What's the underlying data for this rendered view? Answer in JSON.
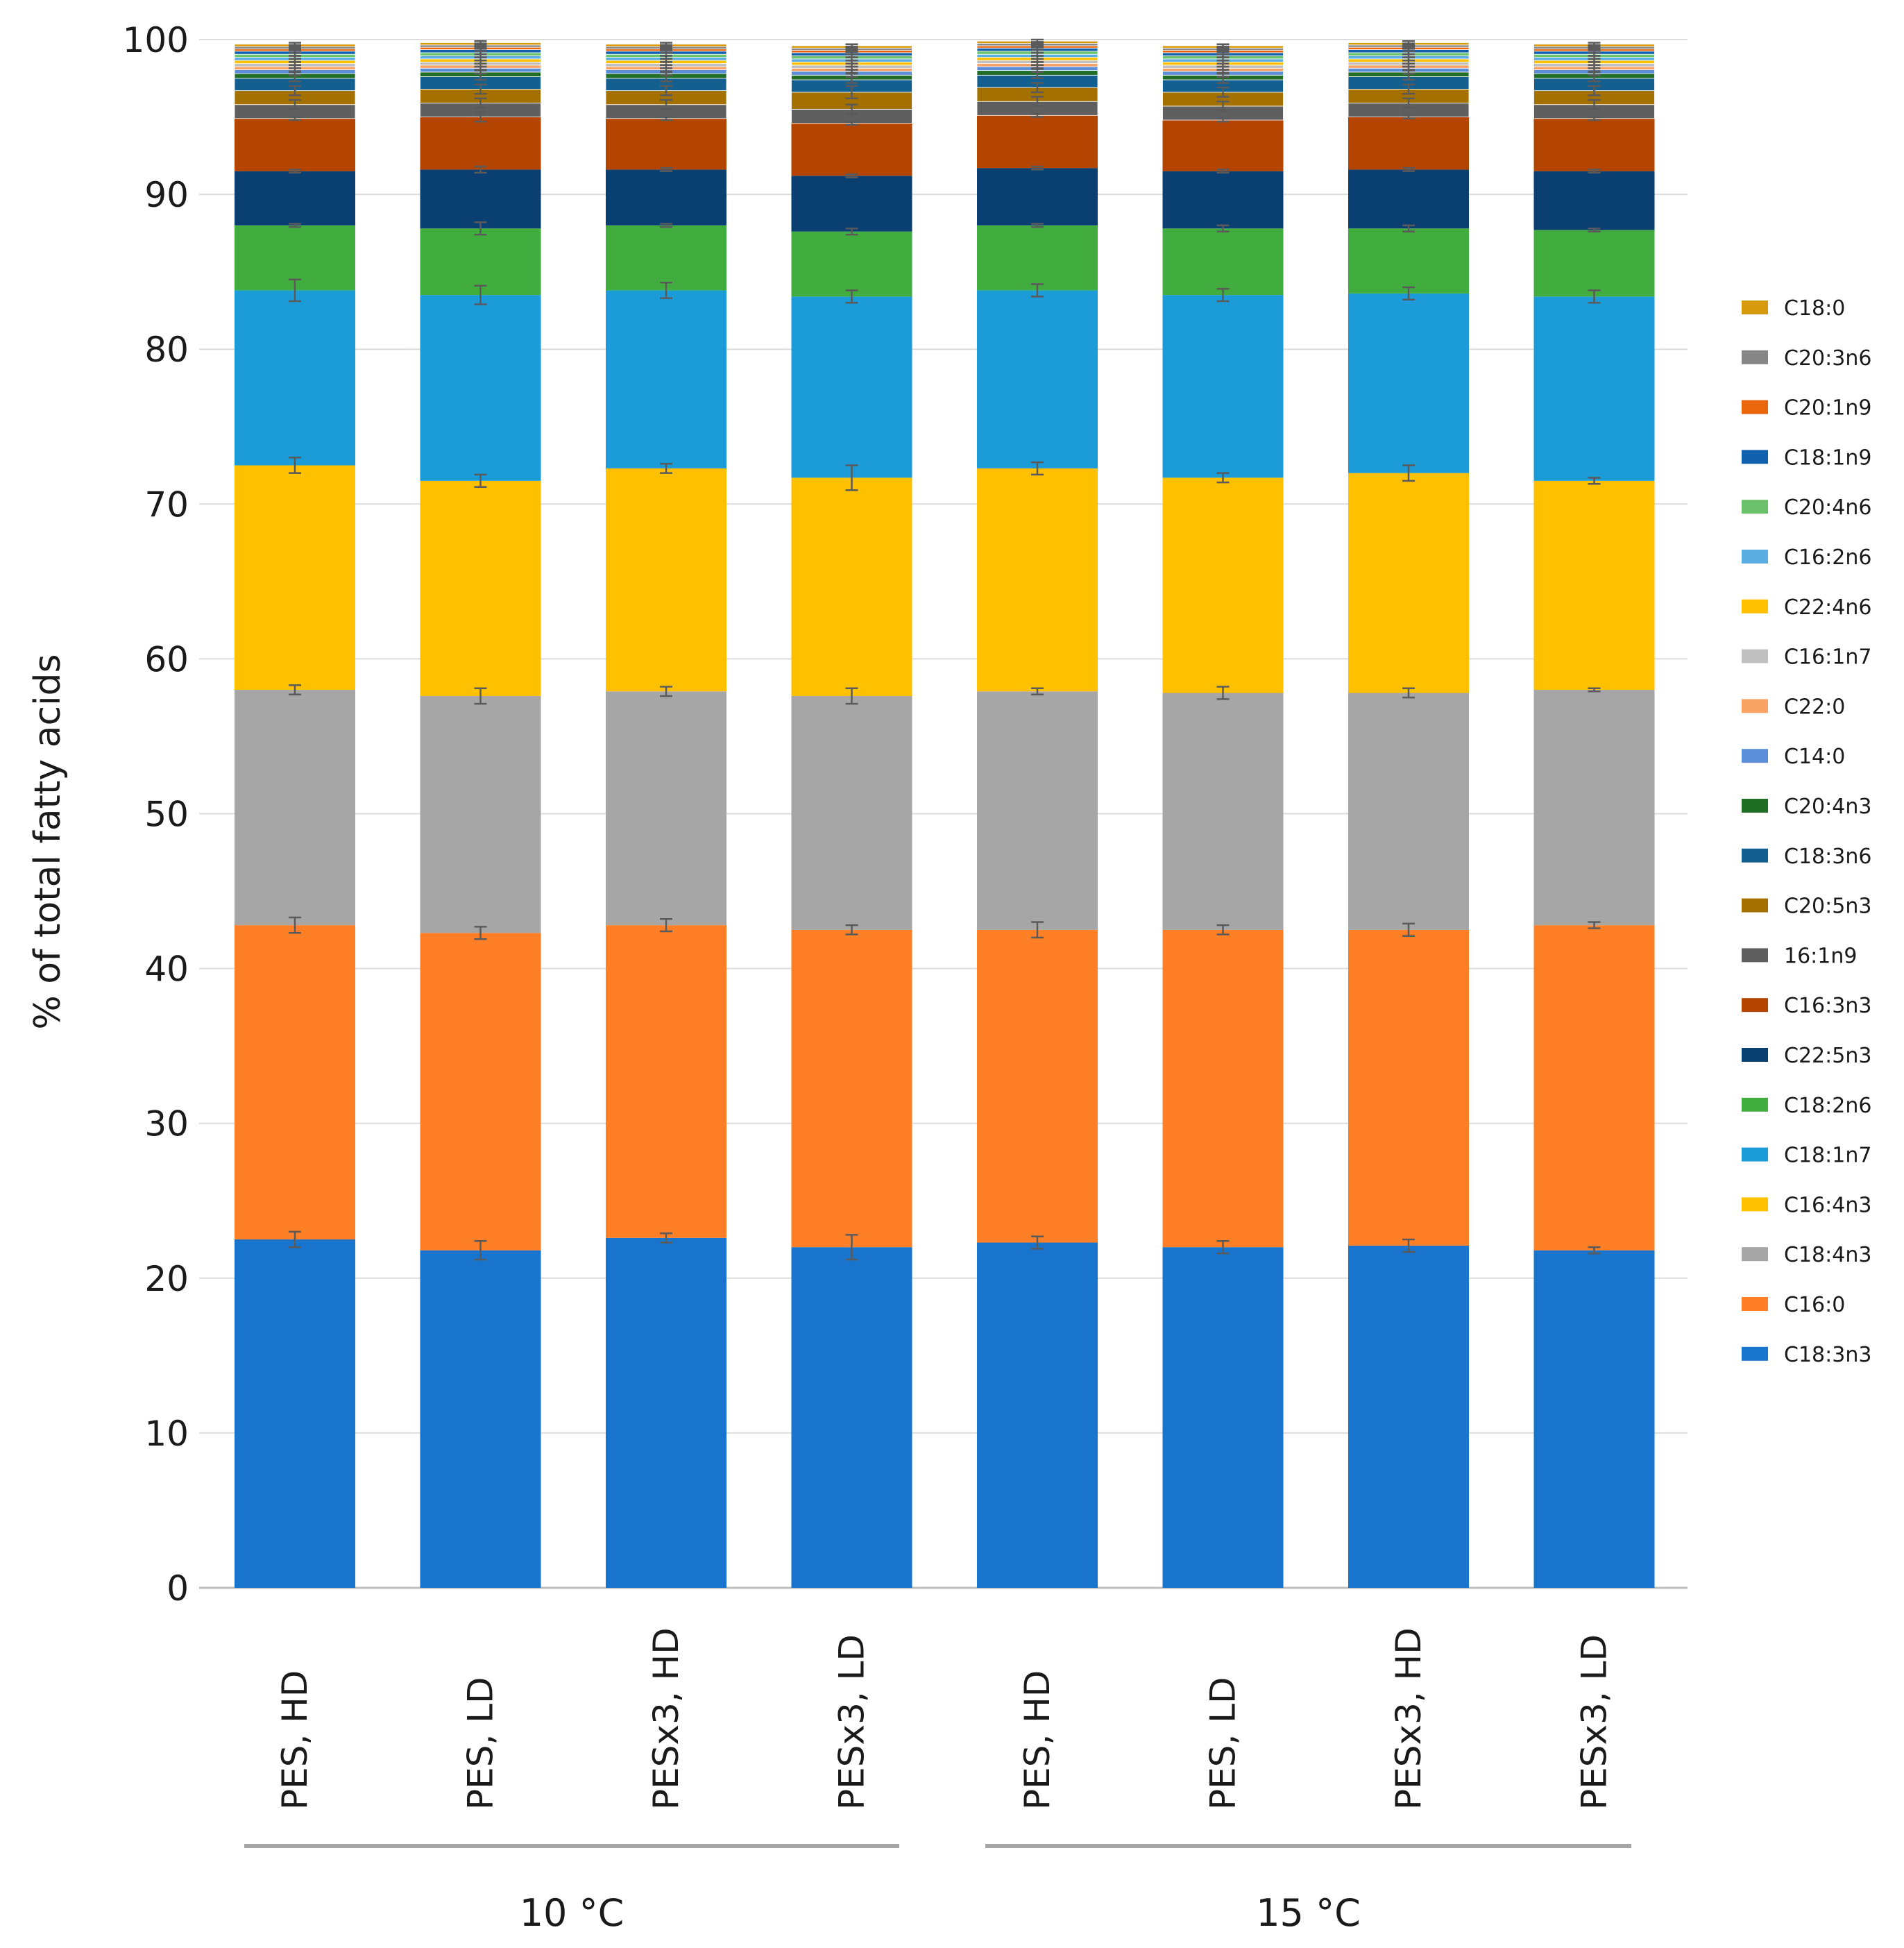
{
  "chart_data": {
    "type": "stacked-bar",
    "title": "",
    "xlabel": "",
    "ylabel": "% of total fatty acids",
    "ylim": [
      0,
      100
    ],
    "yticks": [
      0,
      10,
      20,
      30,
      40,
      50,
      60,
      70,
      80,
      90,
      100
    ],
    "grid": true,
    "legend_position": "right",
    "categories": [
      "PES, HD",
      "PES, LD",
      "PESx3, HD",
      "PESx3, LD",
      "PES, HD",
      "PES, LD",
      "PESx3, HD",
      "PESx3, LD"
    ],
    "groups": [
      {
        "label": "10 °C",
        "category_indices": [
          0,
          1,
          2,
          3
        ]
      },
      {
        "label": "15 °C",
        "category_indices": [
          4,
          5,
          6,
          7
        ]
      }
    ],
    "series": [
      {
        "name": "C18:3n3",
        "color": "#1874CD",
        "values": [
          22.5,
          21.8,
          22.6,
          22.0,
          22.3,
          22.0,
          22.1,
          21.8
        ],
        "errors": [
          0.5,
          0.6,
          0.3,
          0.8,
          0.4,
          0.4,
          0.4,
          0.2
        ]
      },
      {
        "name": "C16:0",
        "color": "#FF7F27",
        "values": [
          20.3,
          20.5,
          20.2,
          20.5,
          20.2,
          20.5,
          20.4,
          21.0
        ],
        "errors": [
          0.5,
          0.4,
          0.4,
          0.3,
          0.5,
          0.3,
          0.4,
          0.2
        ]
      },
      {
        "name": "C18:4n3",
        "color": "#A6A6A6",
        "values": [
          15.2,
          15.3,
          15.1,
          15.1,
          15.4,
          15.3,
          15.3,
          15.2
        ],
        "errors": [
          0.3,
          0.5,
          0.3,
          0.5,
          0.2,
          0.4,
          0.3,
          0.1
        ]
      },
      {
        "name": "C16:4n3",
        "color": "#FFC000",
        "values": [
          14.5,
          13.9,
          14.4,
          14.1,
          14.4,
          13.9,
          14.2,
          13.5
        ],
        "errors": [
          0.5,
          0.4,
          0.3,
          0.8,
          0.4,
          0.3,
          0.5,
          0.2
        ]
      },
      {
        "name": "C18:1n7",
        "color": "#1B9CD8",
        "values": [
          11.3,
          12.0,
          11.5,
          11.7,
          11.5,
          11.8,
          11.6,
          11.9
        ],
        "errors": [
          0.7,
          0.6,
          0.5,
          0.4,
          0.4,
          0.4,
          0.4,
          0.4
        ]
      },
      {
        "name": "C18:2n6",
        "color": "#41AD3F",
        "values": [
          4.2,
          4.3,
          4.2,
          4.2,
          4.2,
          4.3,
          4.2,
          4.3
        ],
        "errors": [
          0.1,
          0.4,
          0.1,
          0.2,
          0.1,
          0.2,
          0.2,
          0.1
        ]
      },
      {
        "name": "C22:5n3",
        "color": "#0A3F72",
        "values": [
          3.5,
          3.8,
          3.6,
          3.6,
          3.7,
          3.7,
          3.8,
          3.8
        ],
        "errors": [
          0.1,
          0.2,
          0.1,
          0.1,
          0.1,
          0.1,
          0.1,
          0.1
        ]
      },
      {
        "name": "C16:3n3",
        "color": "#B34500",
        "values": [
          3.4,
          3.4,
          3.3,
          3.4,
          3.4,
          3.3,
          3.4,
          3.4
        ],
        "errors": [
          0.1,
          0.3,
          0.1,
          0.1,
          0.1,
          0.1,
          0.1,
          0.1
        ]
      },
      {
        "name": "16:1n9",
        "color": "#5F5F5F",
        "values": [
          0.9,
          0.9,
          0.9,
          0.9,
          0.9,
          0.9,
          0.9,
          0.9
        ],
        "errors": [
          0.3,
          0.3,
          0.3,
          0.3,
          0.3,
          0.3,
          0.3,
          0.3
        ]
      },
      {
        "name": "C20:5n3",
        "color": "#A47100",
        "values": [
          0.9,
          0.9,
          0.9,
          1.1,
          0.9,
          0.9,
          0.9,
          0.9
        ],
        "errors": [
          0.3,
          0.3,
          0.3,
          0.4,
          0.3,
          0.3,
          0.3,
          0.3
        ]
      },
      {
        "name": "C18:3n6",
        "color": "#135F8F",
        "values": [
          0.8,
          0.8,
          0.8,
          0.8,
          0.8,
          0.8,
          0.8,
          0.8
        ],
        "errors": [
          0.2,
          0.2,
          0.2,
          0.2,
          0.2,
          0.2,
          0.2,
          0.2
        ]
      },
      {
        "name": "C20:4n3",
        "color": "#206D25",
        "values": [
          0.3,
          0.3,
          0.3,
          0.3,
          0.3,
          0.3,
          0.3,
          0.3
        ],
        "errors": [
          0.1,
          0.1,
          0.1,
          0.1,
          0.1,
          0.1,
          0.1,
          0.1
        ]
      },
      {
        "name": "C14:0",
        "color": "#5B8FDA",
        "values": [
          0.25,
          0.25,
          0.25,
          0.25,
          0.25,
          0.25,
          0.25,
          0.25
        ],
        "errors": [
          0.1,
          0.1,
          0.1,
          0.1,
          0.1,
          0.1,
          0.1,
          0.1
        ]
      },
      {
        "name": "C22:0",
        "color": "#F9A266",
        "values": [
          0.2,
          0.2,
          0.2,
          0.2,
          0.2,
          0.2,
          0.2,
          0.2
        ],
        "errors": [
          0.1,
          0.1,
          0.1,
          0.1,
          0.1,
          0.1,
          0.1,
          0.1
        ]
      },
      {
        "name": "C16:1n7",
        "color": "#C0C0C0",
        "values": [
          0.2,
          0.2,
          0.2,
          0.2,
          0.2,
          0.2,
          0.2,
          0.2
        ],
        "errors": [
          0.1,
          0.1,
          0.1,
          0.1,
          0.1,
          0.1,
          0.1,
          0.1
        ]
      },
      {
        "name": "C22:4n6",
        "color": "#FFC000",
        "values": [
          0.2,
          0.2,
          0.2,
          0.2,
          0.2,
          0.2,
          0.2,
          0.2
        ],
        "errors": [
          0.1,
          0.1,
          0.1,
          0.1,
          0.1,
          0.1,
          0.1,
          0.1
        ]
      },
      {
        "name": "C16:2n6",
        "color": "#5CADE2",
        "values": [
          0.2,
          0.2,
          0.2,
          0.2,
          0.2,
          0.2,
          0.2,
          0.2
        ],
        "errors": [
          0.1,
          0.1,
          0.1,
          0.1,
          0.1,
          0.1,
          0.1,
          0.1
        ]
      },
      {
        "name": "C20:4n6",
        "color": "#6CC26C",
        "values": [
          0.2,
          0.2,
          0.2,
          0.2,
          0.2,
          0.2,
          0.2,
          0.2
        ],
        "errors": [
          0.1,
          0.1,
          0.1,
          0.1,
          0.1,
          0.1,
          0.1,
          0.1
        ]
      },
      {
        "name": "C18:1n9",
        "color": "#1160AE",
        "values": [
          0.2,
          0.2,
          0.2,
          0.2,
          0.2,
          0.2,
          0.2,
          0.2
        ],
        "errors": [
          0.1,
          0.1,
          0.1,
          0.1,
          0.1,
          0.1,
          0.1,
          0.1
        ]
      },
      {
        "name": "C20:1n9",
        "color": "#E9660C",
        "values": [
          0.15,
          0.15,
          0.15,
          0.15,
          0.15,
          0.15,
          0.15,
          0.15
        ],
        "errors": [
          0.1,
          0.1,
          0.1,
          0.1,
          0.1,
          0.1,
          0.1,
          0.1
        ]
      },
      {
        "name": "C20:3n6",
        "color": "#868686",
        "values": [
          0.15,
          0.15,
          0.15,
          0.15,
          0.15,
          0.15,
          0.15,
          0.15
        ],
        "errors": [
          0.1,
          0.1,
          0.1,
          0.1,
          0.1,
          0.1,
          0.1,
          0.1
        ]
      },
      {
        "name": "C18:0",
        "color": "#D69A0C",
        "values": [
          0.15,
          0.15,
          0.15,
          0.15,
          0.15,
          0.15,
          0.15,
          0.15
        ],
        "errors": [
          0.1,
          0.1,
          0.1,
          0.1,
          0.1,
          0.1,
          0.1,
          0.1
        ]
      }
    ]
  }
}
